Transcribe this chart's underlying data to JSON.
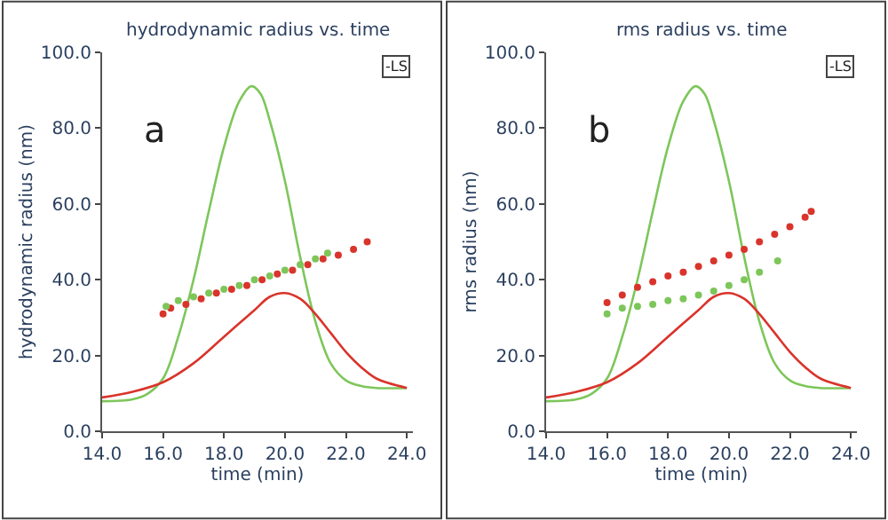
{
  "chart_data": [
    {
      "type": "line",
      "title": "hydrodynamic radius vs. time",
      "xlabel": "time (min)",
      "ylabel": "hydrodynamic radius (nm)",
      "annotations": [
        "a",
        "-LS"
      ],
      "xlim": [
        14,
        24.2
      ],
      "ylim": [
        0,
        100
      ],
      "xticks": [
        {
          "value": 14,
          "label": "14.0"
        },
        {
          "value": 16,
          "label": "16.0"
        },
        {
          "value": 18,
          "label": "18.0"
        },
        {
          "value": 20,
          "label": "20.0"
        },
        {
          "value": 22,
          "label": "22.0"
        },
        {
          "value": 24,
          "label": "24.0"
        }
      ],
      "yticks": [
        {
          "value": 0,
          "label": "0.0"
        },
        {
          "value": 20,
          "label": "20.0"
        },
        {
          "value": 40,
          "label": "40.0"
        },
        {
          "value": 60,
          "label": "60.0"
        },
        {
          "value": 80,
          "label": "80.0"
        },
        {
          "value": 100,
          "label": "100.0"
        }
      ],
      "series": [
        {
          "color": "#7dc65a",
          "x": [
            14,
            15,
            15.5,
            16,
            16.5,
            17,
            17.5,
            18,
            18.5,
            18.9,
            19.2,
            19.5,
            20,
            20.5,
            21,
            21.5,
            22,
            22.5,
            23,
            24
          ],
          "values": [
            8,
            8.5,
            10,
            14,
            25,
            40,
            58,
            75,
            87,
            91,
            89,
            82,
            66,
            46,
            29,
            18,
            13.5,
            12,
            11.5,
            11.5
          ]
        },
        {
          "color": "#d9342b",
          "x": [
            14,
            15,
            16,
            17,
            18,
            19,
            19.5,
            20,
            20.5,
            21,
            21.5,
            22,
            22.5,
            23,
            24
          ],
          "values": [
            9,
            10.5,
            13,
            18,
            25,
            32,
            35.5,
            36.5,
            35,
            31,
            26,
            21,
            17,
            14,
            11.5
          ]
        },
        {
          "type": "scatter",
          "color": "#d9342b",
          "marker": "circle",
          "x": [
            16,
            16.25,
            16.75,
            17.25,
            17.75,
            18.25,
            18.75,
            19.25,
            19.75,
            20.25,
            20.75,
            21.25,
            21.75,
            22.25,
            22.7
          ],
          "values": [
            31,
            32.5,
            33.5,
            35,
            36.5,
            37.5,
            38.5,
            40,
            41.5,
            42.5,
            44,
            45.5,
            46.5,
            48,
            50
          ]
        },
        {
          "type": "scatter",
          "color": "#7dc65a",
          "marker": "circle",
          "x": [
            16.1,
            16.5,
            17,
            17.5,
            18,
            18.5,
            19,
            19.5,
            20,
            20.5,
            21,
            21.4
          ],
          "values": [
            33,
            34.5,
            35.5,
            36.5,
            37.5,
            38.5,
            40,
            41,
            42.5,
            44,
            45.5,
            47
          ]
        }
      ]
    },
    {
      "type": "line",
      "title": "rms radius vs. time",
      "xlabel": "time (min)",
      "ylabel": "rms radius (nm)",
      "annotations": [
        "b",
        "-LS"
      ],
      "xlim": [
        14,
        24.2
      ],
      "ylim": [
        0,
        100
      ],
      "xticks": [
        {
          "value": 14,
          "label": "14.0"
        },
        {
          "value": 16,
          "label": "16.0"
        },
        {
          "value": 18,
          "label": "18.0"
        },
        {
          "value": 20,
          "label": "20.0"
        },
        {
          "value": 22,
          "label": "22.0"
        },
        {
          "value": 24,
          "label": "24.0"
        }
      ],
      "yticks": [
        {
          "value": 0,
          "label": "0.0"
        },
        {
          "value": 20,
          "label": "20.0"
        },
        {
          "value": 40,
          "label": "40.0"
        },
        {
          "value": 60,
          "label": "60.0"
        },
        {
          "value": 80,
          "label": "80.0"
        },
        {
          "value": 100,
          "label": "100.0"
        }
      ],
      "series": [
        {
          "color": "#7dc65a",
          "x": [
            14,
            15,
            15.5,
            16,
            16.5,
            17,
            17.5,
            18,
            18.5,
            18.9,
            19.2,
            19.5,
            20,
            20.5,
            21,
            21.5,
            22,
            22.5,
            23,
            24
          ],
          "values": [
            8,
            8.5,
            10,
            14,
            25,
            40,
            58,
            75,
            87,
            91,
            89,
            82,
            66,
            46,
            29,
            18,
            13.5,
            12,
            11.5,
            11.5
          ]
        },
        {
          "color": "#d9342b",
          "x": [
            14,
            15,
            16,
            17,
            18,
            19,
            19.5,
            20,
            20.5,
            21,
            21.5,
            22,
            22.5,
            23,
            24
          ],
          "values": [
            9,
            10.5,
            13,
            18,
            25,
            32,
            35.5,
            36.5,
            35,
            31,
            26,
            21,
            17,
            14,
            11.5
          ]
        },
        {
          "type": "scatter",
          "color": "#d9342b",
          "marker": "circle",
          "x": [
            16,
            16.5,
            17,
            17.5,
            18,
            18.5,
            19,
            19.5,
            20,
            20.5,
            21,
            21.5,
            22,
            22.5,
            22.7
          ],
          "values": [
            34,
            36,
            38,
            39.5,
            41,
            42,
            43.5,
            45,
            46.5,
            48,
            50,
            52,
            54,
            56.5,
            58
          ]
        },
        {
          "type": "scatter",
          "color": "#7dc65a",
          "marker": "circle",
          "x": [
            16,
            16.5,
            17,
            17.5,
            18,
            18.5,
            19,
            19.5,
            20,
            20.5,
            21,
            21.6
          ],
          "values": [
            31,
            32.5,
            33,
            33.5,
            34.5,
            35,
            36,
            37,
            38.5,
            40,
            42,
            45
          ]
        }
      ]
    }
  ]
}
